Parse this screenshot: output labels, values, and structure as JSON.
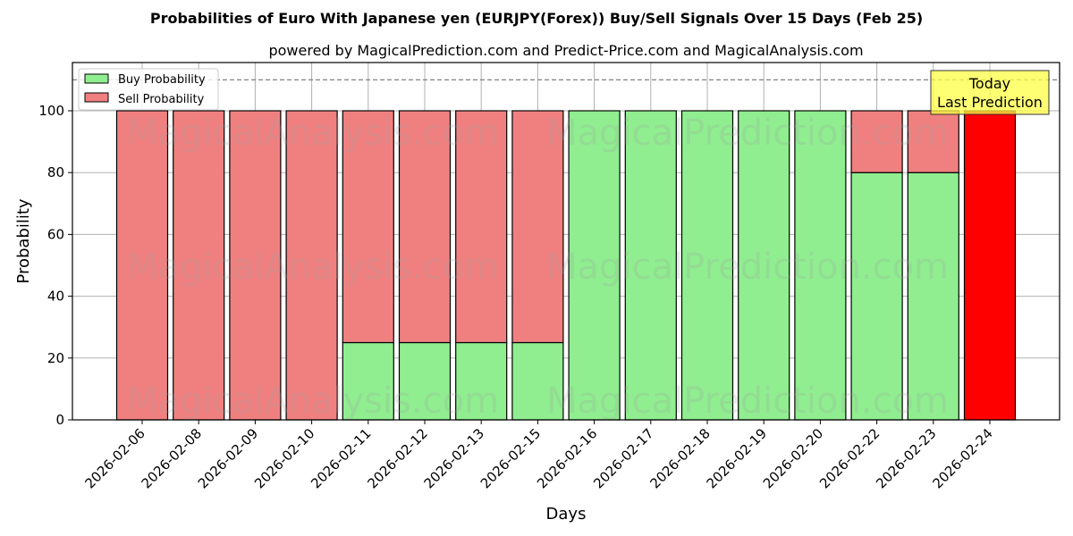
{
  "title": "Probabilities of Euro With Japanese yen (EURJPY(Forex)) Buy/Sell Signals Over 15 Days (Feb 25)",
  "subtitle": "powered by MagicalPrediction.com and Predict-Price.com and MagicalAnalysis.com",
  "watermarks": [
    "MagicalAnalysis.com",
    "MagicalPrediction.com"
  ],
  "annotation": {
    "line1": "Today",
    "line2": "Last Prediction",
    "bg_color": "#ffff44"
  },
  "colors": {
    "buy": "#90ee90",
    "sell": "#f08080",
    "today": "#ff0000"
  },
  "chart_data": {
    "type": "bar",
    "stacked": true,
    "title": "Probabilities of Euro With Japanese yen (EURJPY(Forex)) Buy/Sell Signals Over 15 Days (Feb 25)",
    "subtitle": "powered by MagicalPrediction.com and Predict-Price.com and MagicalAnalysis.com",
    "xlabel": "Days",
    "ylabel": "Probability",
    "ylim": [
      0,
      115
    ],
    "yticks": [
      0,
      20,
      40,
      60,
      80,
      100
    ],
    "grid": true,
    "legend_position": "upper left",
    "reference_line": {
      "y": 110,
      "style": "dashed",
      "color": "#808080"
    },
    "categories": [
      "2026-02-06",
      "2026-02-08",
      "2026-02-09",
      "2026-02-10",
      "2026-02-11",
      "2026-02-12",
      "2026-02-13",
      "2026-02-15",
      "2026-02-16",
      "2026-02-17",
      "2026-02-18",
      "2026-02-19",
      "2026-02-20",
      "2026-02-22",
      "2026-02-23",
      "2026-02-24"
    ],
    "series": [
      {
        "name": "Buy Probability",
        "color": "#90ee90",
        "values": [
          0,
          0,
          0,
          0,
          25,
          25,
          25,
          25,
          100,
          100,
          100,
          100,
          100,
          80,
          80,
          0
        ]
      },
      {
        "name": "Sell Probability",
        "color": "#f08080",
        "values": [
          100,
          100,
          100,
          100,
          75,
          75,
          75,
          75,
          0,
          0,
          0,
          0,
          0,
          20,
          20,
          100
        ]
      }
    ],
    "highlight": {
      "category": "2026-02-24",
      "color": "#ff0000",
      "label": "Today Last Prediction",
      "value": 100
    }
  }
}
